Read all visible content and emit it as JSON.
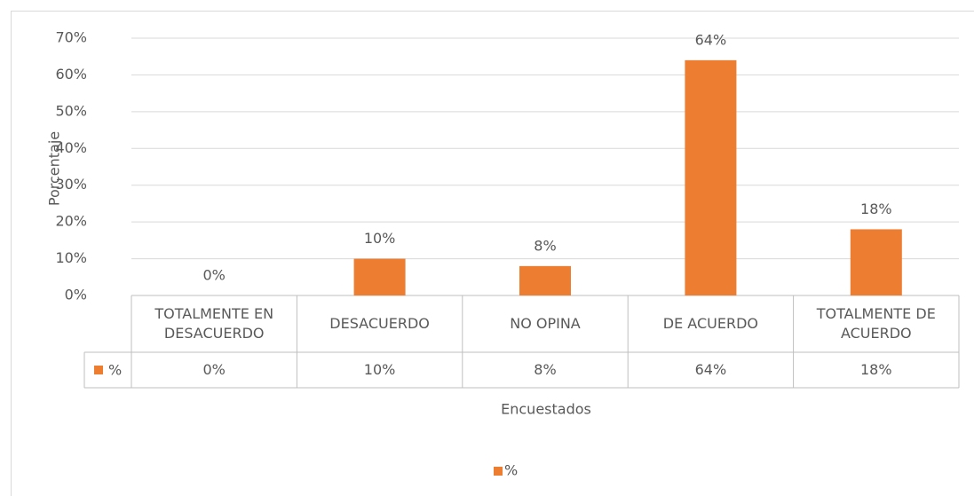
{
  "chart_data": {
    "type": "bar",
    "y_label": "Porcentaje",
    "x_label": "Encuestados",
    "categories": [
      "TOTALMENTE EN DESACUERDO",
      "DESACUERDO",
      "NO OPINA",
      "DE ACUERDO",
      "TOTALMENTE DE ACUERDO"
    ],
    "series": [
      {
        "name": "%",
        "color": "#ed7d31",
        "values": [
          0,
          10,
          8,
          64,
          18
        ],
        "value_labels": [
          "0%",
          "10%",
          "8%",
          "64%",
          "18%"
        ]
      }
    ],
    "ylim": [
      0,
      70
    ],
    "yticks": [
      {
        "value": 0,
        "label": "0%"
      },
      {
        "value": 10,
        "label": "10%"
      },
      {
        "value": 20,
        "label": "20%"
      },
      {
        "value": 30,
        "label": "30%"
      },
      {
        "value": 40,
        "label": "40%"
      },
      {
        "value": 50,
        "label": "50%"
      },
      {
        "value": 60,
        "label": "60%"
      },
      {
        "value": 70,
        "label": "70%"
      }
    ],
    "grid": true,
    "data_table": true,
    "legend": "bottom"
  }
}
